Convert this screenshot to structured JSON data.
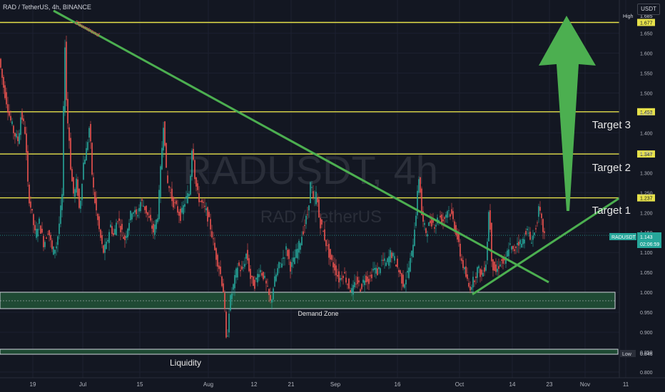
{
  "header": {
    "title": "RAD / TetherUS, 4h, BINANCE",
    "currency_button": "USDT"
  },
  "watermark": {
    "symbol": "RADUSDT, 4h",
    "name": "RAD / TetherUS"
  },
  "colors": {
    "background": "#131722",
    "up": "#26a69a",
    "down": "#ef5350",
    "level": "#e6e14a",
    "trend": "#4caf50",
    "arrow": "#4caf50"
  },
  "chart_data": {
    "type": "candlestick",
    "ylim": [
      0.8,
      1.7
    ],
    "y_ticks": [
      "1.650",
      "1.600",
      "1.550",
      "1.500",
      "1.450",
      "1.400",
      "1.350",
      "1.300",
      "1.250",
      "1.200",
      "1.150",
      "1.100",
      "1.050",
      "1.000",
      "0.950",
      "0.900",
      "0.850",
      "0.800"
    ],
    "x_ticks": [
      "19",
      "Jul",
      "15",
      "Aug",
      "12",
      "21",
      "Sep",
      "16",
      "Oct",
      "14",
      "23",
      "Nov",
      "11"
    ],
    "levels": [
      {
        "value": 1.677,
        "label": "1.677"
      },
      {
        "value": 1.453,
        "label": "1.453"
      },
      {
        "value": 1.347,
        "label": "1.347"
      },
      {
        "value": 1.237,
        "label": "1.237"
      }
    ],
    "high": {
      "label": "High",
      "value": "1.685"
    },
    "low": {
      "label": "Low",
      "value": "0.846"
    },
    "last_price": {
      "symbol": "RADUSDT",
      "value": "1.143",
      "countdown": "02:06:59"
    },
    "annotations": {
      "downtrend": "Downtrend",
      "targets": [
        "Target 3",
        "Target 2",
        "Target 1"
      ],
      "demand_zone": "Demand Zone",
      "liquidity": "Liquidity"
    },
    "path_points": [
      [
        0,
        1.58
      ],
      [
        5,
        1.52
      ],
      [
        14,
        1.44
      ],
      [
        20,
        1.4
      ],
      [
        26,
        1.38
      ],
      [
        30,
        1.45
      ],
      [
        36,
        1.4
      ],
      [
        40,
        1.25
      ],
      [
        45,
        1.2
      ],
      [
        50,
        1.14
      ],
      [
        55,
        1.18
      ],
      [
        62,
        1.12
      ],
      [
        68,
        1.16
      ],
      [
        74,
        1.1
      ],
      [
        80,
        1.12
      ],
      [
        84,
        1.18
      ],
      [
        88,
        1.25
      ],
      [
        91,
        1.66
      ],
      [
        94,
        1.45
      ],
      [
        97,
        1.4
      ],
      [
        100,
        1.3
      ],
      [
        104,
        1.24
      ],
      [
        108,
        1.28
      ],
      [
        112,
        1.2
      ],
      [
        117,
        1.32
      ],
      [
        122,
        1.36
      ],
      [
        126,
        1.42
      ],
      [
        130,
        1.28
      ],
      [
        134,
        1.22
      ],
      [
        140,
        1.15
      ],
      [
        145,
        1.1
      ],
      [
        150,
        1.12
      ],
      [
        155,
        1.17
      ],
      [
        160,
        1.14
      ],
      [
        165,
        1.19
      ],
      [
        170,
        1.16
      ],
      [
        175,
        1.13
      ],
      [
        180,
        1.17
      ],
      [
        186,
        1.21
      ],
      [
        192,
        1.19
      ],
      [
        198,
        1.23
      ],
      [
        204,
        1.21
      ],
      [
        210,
        1.18
      ],
      [
        216,
        1.15
      ],
      [
        222,
        1.2
      ],
      [
        226,
        1.32
      ],
      [
        230,
        1.44
      ],
      [
        234,
        1.28
      ],
      [
        238,
        1.26
      ],
      [
        242,
        1.23
      ],
      [
        248,
        1.21
      ],
      [
        254,
        1.19
      ],
      [
        260,
        1.23
      ],
      [
        266,
        1.25
      ],
      [
        270,
        1.38
      ],
      [
        274,
        1.28
      ],
      [
        278,
        1.24
      ],
      [
        284,
        1.22
      ],
      [
        290,
        1.2
      ],
      [
        296,
        1.16
      ],
      [
        302,
        1.1
      ],
      [
        308,
        1.06
      ],
      [
        314,
        1.0
      ],
      [
        318,
        0.86
      ],
      [
        322,
        0.97
      ],
      [
        328,
        1.02
      ],
      [
        334,
        1.07
      ],
      [
        340,
        1.05
      ],
      [
        346,
        1.1
      ],
      [
        352,
        1.03
      ],
      [
        358,
        1.02
      ],
      [
        364,
        1.06
      ],
      [
        370,
        1.04
      ],
      [
        376,
        1.0
      ],
      [
        380,
        0.97
      ],
      [
        384,
        1.02
      ],
      [
        390,
        1.06
      ],
      [
        396,
        1.08
      ],
      [
        402,
        1.11
      ],
      [
        408,
        1.06
      ],
      [
        414,
        1.09
      ],
      [
        420,
        1.12
      ],
      [
        426,
        1.16
      ],
      [
        432,
        1.2
      ],
      [
        436,
        1.28
      ],
      [
        440,
        1.22
      ],
      [
        444,
        1.25
      ],
      [
        448,
        1.18
      ],
      [
        452,
        1.16
      ],
      [
        458,
        1.12
      ],
      [
        464,
        1.08
      ],
      [
        470,
        1.06
      ],
      [
        476,
        1.03
      ],
      [
        482,
        1.05
      ],
      [
        488,
        1.02
      ],
      [
        494,
        1.0
      ],
      [
        500,
        1.03
      ],
      [
        506,
        1.01
      ],
      [
        512,
        1.04
      ],
      [
        518,
        1.03
      ],
      [
        524,
        1.06
      ],
      [
        530,
        1.05
      ],
      [
        536,
        1.08
      ],
      [
        542,
        1.07
      ],
      [
        548,
        1.1
      ],
      [
        554,
        1.08
      ],
      [
        560,
        1.05
      ],
      [
        566,
        1.02
      ],
      [
        572,
        1.05
      ],
      [
        578,
        1.1
      ],
      [
        584,
        1.21
      ],
      [
        588,
        1.3
      ],
      [
        592,
        1.18
      ],
      [
        598,
        1.15
      ],
      [
        604,
        1.18
      ],
      [
        610,
        1.17
      ],
      [
        616,
        1.19
      ],
      [
        622,
        1.18
      ],
      [
        628,
        1.21
      ],
      [
        634,
        1.19
      ],
      [
        640,
        1.15
      ],
      [
        646,
        1.09
      ],
      [
        652,
        1.05
      ],
      [
        658,
        1.01
      ],
      [
        664,
        1.03
      ],
      [
        670,
        1.06
      ],
      [
        676,
        1.04
      ],
      [
        682,
        1.08
      ],
      [
        686,
        1.22
      ],
      [
        690,
        1.07
      ],
      [
        696,
        1.05
      ],
      [
        702,
        1.08
      ],
      [
        708,
        1.07
      ],
      [
        714,
        1.12
      ],
      [
        720,
        1.1
      ],
      [
        726,
        1.13
      ],
      [
        732,
        1.12
      ],
      [
        738,
        1.16
      ],
      [
        744,
        1.13
      ],
      [
        750,
        1.15
      ],
      [
        756,
        1.21
      ],
      [
        760,
        1.17
      ],
      [
        763,
        1.143
      ]
    ]
  }
}
